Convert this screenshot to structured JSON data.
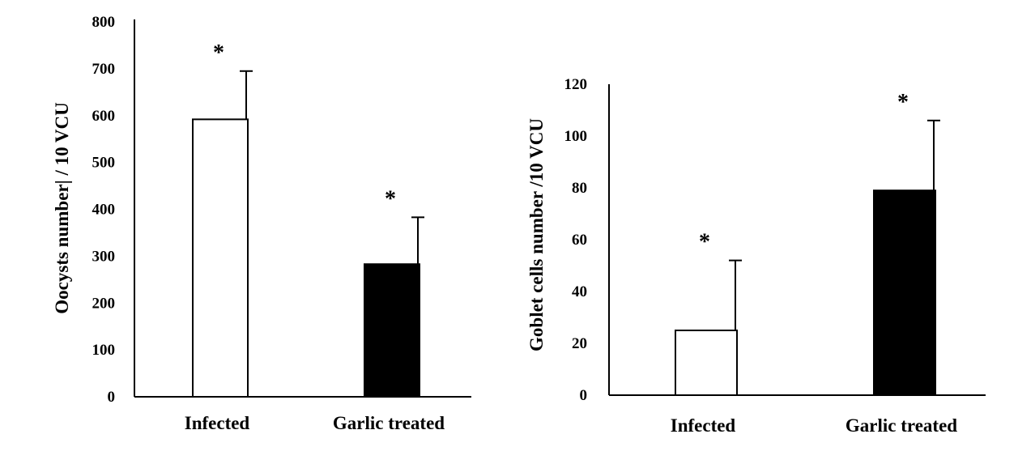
{
  "chart_data": [
    {
      "type": "bar",
      "title": "",
      "xlabel": "",
      "ylabel": "Oocysts number| / 10 VCU",
      "categories": [
        "Infected",
        "Garlic treated"
      ],
      "values": [
        592,
        283
      ],
      "error": [
        103,
        100
      ],
      "significance": [
        "*",
        "*"
      ],
      "bar_colors": [
        "#ffffff",
        "#000000"
      ],
      "ylim": [
        0,
        800
      ],
      "yticks": [
        0,
        100,
        200,
        300,
        400,
        500,
        600,
        700,
        800
      ],
      "grid": false,
      "legend": "none"
    },
    {
      "type": "bar",
      "title": "",
      "xlabel": "",
      "ylabel": "Goblet cells number /10 VCU",
      "categories": [
        "Infected",
        "Garlic treated"
      ],
      "values": [
        25,
        79
      ],
      "error": [
        27,
        27
      ],
      "significance": [
        "*",
        "*"
      ],
      "bar_colors": [
        "#ffffff",
        "#000000"
      ],
      "ylim": [
        0,
        120
      ],
      "yticks": [
        0,
        20,
        40,
        60,
        80,
        100,
        120
      ],
      "grid": false,
      "legend": "none"
    }
  ]
}
